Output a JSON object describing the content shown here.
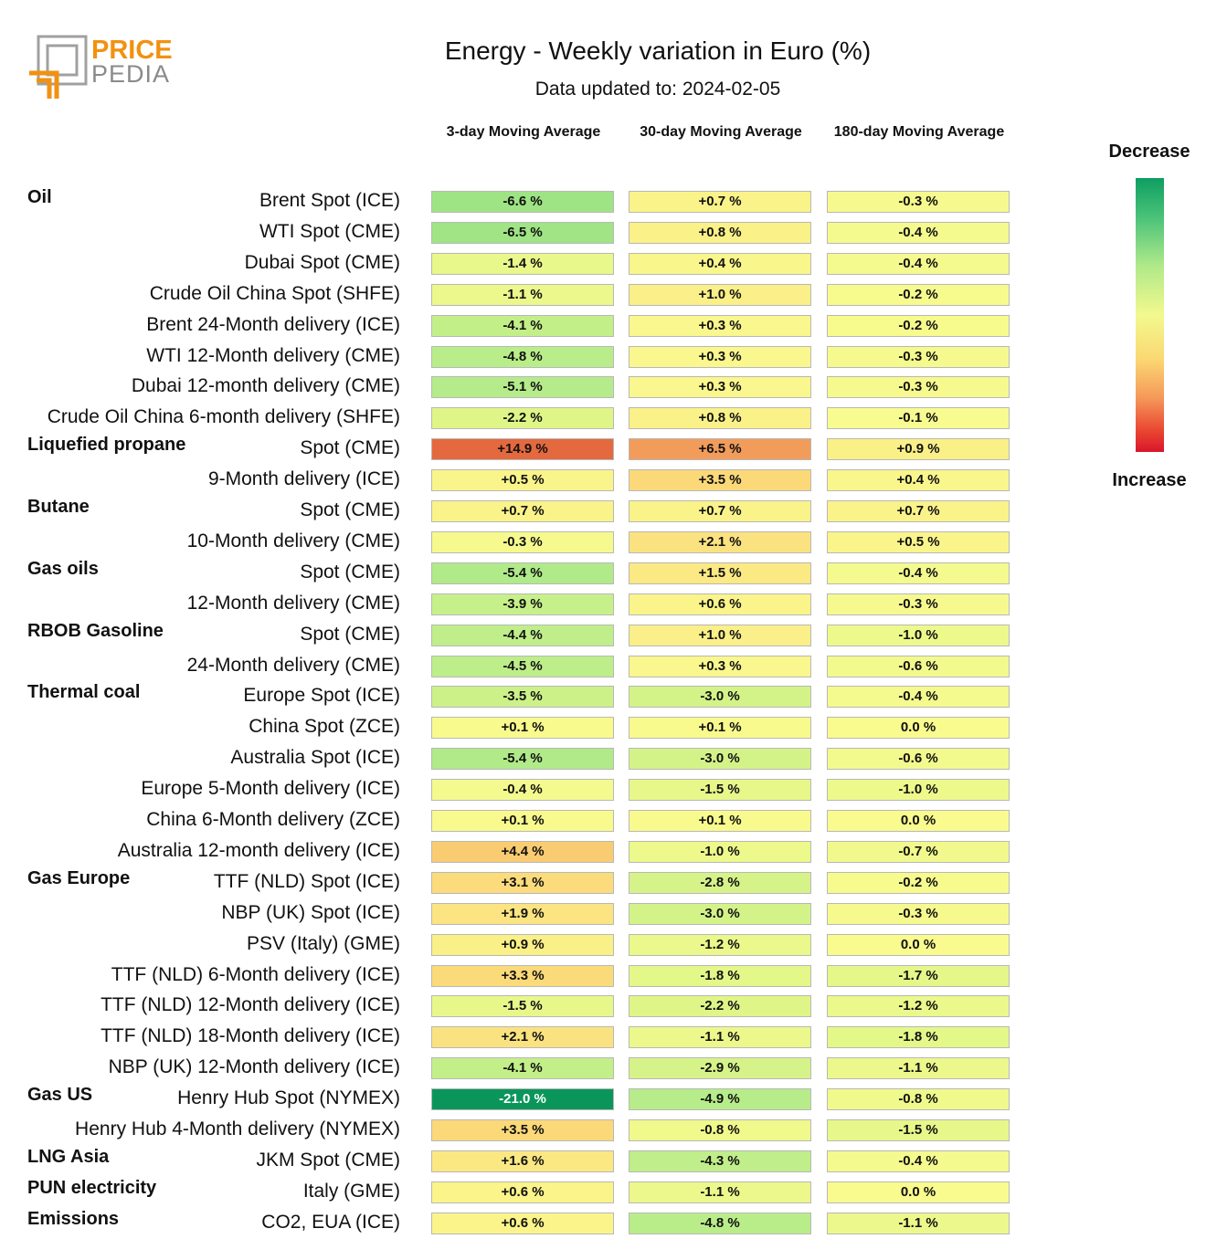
{
  "logo": {
    "line1": "PRICE",
    "line2": "PEDIA"
  },
  "title": "Energy - Weekly variation in Euro (%)",
  "subtitle": "Data updated to: 2024-02-05",
  "columns": [
    "3-day Moving Average",
    "30-day Moving Average",
    "180-day Moving Average"
  ],
  "legend": {
    "top": "Decrease",
    "bottom": "Increase"
  },
  "chart_data": {
    "type": "table",
    "title": "Energy - Weekly variation in Euro (%)",
    "columns": [
      "3-day Moving Average",
      "30-day Moving Average",
      "180-day Moving Average"
    ],
    "unit": "%",
    "rows": [
      {
        "group": "Oil",
        "name": "Brent Spot (ICE)",
        "text": [
          "-6.6 %",
          "+0.7 %",
          "-0.3 %"
        ],
        "values": [
          -6.6,
          0.7,
          -0.3
        ]
      },
      {
        "group": "",
        "name": "WTI Spot (CME)",
        "text": [
          "-6.5 %",
          "+0.8 %",
          "-0.4 %"
        ],
        "values": [
          -6.5,
          0.8,
          -0.4
        ]
      },
      {
        "group": "",
        "name": "Dubai Spot (CME)",
        "text": [
          "-1.4 %",
          "+0.4 %",
          "-0.4 %"
        ],
        "values": [
          -1.4,
          0.4,
          -0.4
        ]
      },
      {
        "group": "",
        "name": "Crude Oil China Spot (SHFE)",
        "text": [
          "-1.1 %",
          "+1.0 %",
          "-0.2 %"
        ],
        "values": [
          -1.1,
          1.0,
          -0.2
        ]
      },
      {
        "group": "",
        "name": "Brent 24-Month delivery (ICE)",
        "text": [
          "-4.1 %",
          "+0.3 %",
          "-0.2 %"
        ],
        "values": [
          -4.1,
          0.3,
          -0.2
        ]
      },
      {
        "group": "",
        "name": "WTI 12-Month delivery (CME)",
        "text": [
          "-4.8 %",
          "+0.3 %",
          "-0.3 %"
        ],
        "values": [
          -4.8,
          0.3,
          -0.3
        ]
      },
      {
        "group": "",
        "name": "Dubai 12-month delivery (CME)",
        "text": [
          "-5.1 %",
          "+0.3 %",
          "-0.3 %"
        ],
        "values": [
          -5.1,
          0.3,
          -0.3
        ]
      },
      {
        "group": "",
        "name": "Crude Oil China 6-month delivery (SHFE)",
        "text": [
          "-2.2 %",
          "+0.8 %",
          "-0.1 %"
        ],
        "values": [
          -2.2,
          0.8,
          -0.1
        ]
      },
      {
        "group": "Liquefied propane",
        "name": "Spot (CME)",
        "text": [
          "+14.9 %",
          "+6.5 %",
          "+0.9 %"
        ],
        "values": [
          14.9,
          6.5,
          0.9
        ]
      },
      {
        "group": "",
        "name": "9-Month delivery (ICE)",
        "text": [
          "+0.5 %",
          "+3.5 %",
          "+0.4 %"
        ],
        "values": [
          0.5,
          3.5,
          0.4
        ]
      },
      {
        "group": "Butane",
        "name": "Spot (CME)",
        "text": [
          "+0.7 %",
          "+0.7 %",
          "+0.7 %"
        ],
        "values": [
          0.7,
          0.7,
          0.7
        ]
      },
      {
        "group": "",
        "name": "10-Month delivery (CME)",
        "text": [
          "-0.3 %",
          "+2.1 %",
          "+0.5 %"
        ],
        "values": [
          -0.3,
          2.1,
          0.5
        ]
      },
      {
        "group": "Gas oils",
        "name": "Spot (CME)",
        "text": [
          "-5.4 %",
          "+1.5 %",
          "-0.4 %"
        ],
        "values": [
          -5.4,
          1.5,
          -0.4
        ]
      },
      {
        "group": "",
        "name": "12-Month delivery (CME)",
        "text": [
          "-3.9 %",
          "+0.6 %",
          "-0.3 %"
        ],
        "values": [
          -3.9,
          0.6,
          -0.3
        ]
      },
      {
        "group": "RBOB Gasoline",
        "name": "Spot (CME)",
        "text": [
          "-4.4 %",
          "+1.0 %",
          "-1.0 %"
        ],
        "values": [
          -4.4,
          1.0,
          -1.0
        ]
      },
      {
        "group": "",
        "name": "24-Month delivery (CME)",
        "text": [
          "-4.5 %",
          "+0.3 %",
          "-0.6 %"
        ],
        "values": [
          -4.5,
          0.3,
          -0.6
        ]
      },
      {
        "group": "Thermal coal",
        "name": "Europe Spot (ICE)",
        "text": [
          "-3.5 %",
          "-3.0 %",
          "-0.4 %"
        ],
        "values": [
          -3.5,
          -3.0,
          -0.4
        ]
      },
      {
        "group": "",
        "name": "China Spot (ZCE)",
        "text": [
          "+0.1 %",
          "+0.1 %",
          "0.0 %"
        ],
        "values": [
          0.1,
          0.1,
          0.0
        ]
      },
      {
        "group": "",
        "name": "Australia Spot (ICE)",
        "text": [
          "-5.4 %",
          "-3.0 %",
          "-0.6 %"
        ],
        "values": [
          -5.4,
          -3.0,
          -0.6
        ]
      },
      {
        "group": "",
        "name": "Europe 5-Month delivery (ICE)",
        "text": [
          "-0.4 %",
          "-1.5 %",
          "-1.0 %"
        ],
        "values": [
          -0.4,
          -1.5,
          -1.0
        ]
      },
      {
        "group": "",
        "name": "China 6-Month delivery (ZCE)",
        "text": [
          "+0.1 %",
          "+0.1 %",
          "0.0 %"
        ],
        "values": [
          0.1,
          0.1,
          0.0
        ]
      },
      {
        "group": "",
        "name": "Australia 12-month delivery (ICE)",
        "text": [
          "+4.4 %",
          "-1.0 %",
          "-0.7 %"
        ],
        "values": [
          4.4,
          -1.0,
          -0.7
        ]
      },
      {
        "group": "Gas Europe",
        "name": "TTF (NLD) Spot (ICE)",
        "text": [
          "+3.1 %",
          "-2.8 %",
          "-0.2 %"
        ],
        "values": [
          3.1,
          -2.8,
          -0.2
        ]
      },
      {
        "group": "",
        "name": "NBP (UK) Spot (ICE)",
        "text": [
          "+1.9 %",
          "-3.0 %",
          "-0.3 %"
        ],
        "values": [
          1.9,
          -3.0,
          -0.3
        ]
      },
      {
        "group": "",
        "name": "PSV (Italy) (GME)",
        "text": [
          "+0.9 %",
          "-1.2 %",
          "0.0 %"
        ],
        "values": [
          0.9,
          -1.2,
          0.0
        ]
      },
      {
        "group": "",
        "name": "TTF (NLD) 6-Month delivery (ICE)",
        "text": [
          "+3.3 %",
          "-1.8 %",
          "-1.7 %"
        ],
        "values": [
          3.3,
          -1.8,
          -1.7
        ]
      },
      {
        "group": "",
        "name": "TTF (NLD) 12-Month delivery (ICE)",
        "text": [
          "-1.5 %",
          "-2.2 %",
          "-1.2 %"
        ],
        "values": [
          -1.5,
          -2.2,
          -1.2
        ]
      },
      {
        "group": "",
        "name": "TTF (NLD) 18-Month delivery (ICE)",
        "text": [
          "+2.1 %",
          "-1.1 %",
          "-1.8 %"
        ],
        "values": [
          2.1,
          -1.1,
          -1.8
        ]
      },
      {
        "group": "",
        "name": "NBP (UK) 12-Month delivery (ICE)",
        "text": [
          "-4.1 %",
          "-2.9 %",
          "-1.1 %"
        ],
        "values": [
          -4.1,
          -2.9,
          -1.1
        ]
      },
      {
        "group": "Gas US",
        "name": "Henry Hub Spot (NYMEX)",
        "text": [
          "-21.0 %",
          "-4.9 %",
          "-0.8 %"
        ],
        "values": [
          -21.0,
          -4.9,
          -0.8
        ]
      },
      {
        "group": "",
        "name": "Henry Hub 4-Month delivery (NYMEX)",
        "text": [
          "+3.5 %",
          "-0.8 %",
          "-1.5 %"
        ],
        "values": [
          3.5,
          -0.8,
          -1.5
        ]
      },
      {
        "group": "LNG Asia",
        "name": "JKM Spot (CME)",
        "text": [
          "+1.6 %",
          "-4.3 %",
          "-0.4 %"
        ],
        "values": [
          1.6,
          -4.3,
          -0.4
        ]
      },
      {
        "group": "PUN electricity",
        "name": "Italy (GME)",
        "text": [
          "+0.6 %",
          "-1.1 %",
          "0.0 %"
        ],
        "values": [
          0.6,
          -1.1,
          0.0
        ]
      },
      {
        "group": "Emissions",
        "name": "CO2, EUA (ICE)",
        "text": [
          "+0.6 %",
          "-4.8 %",
          "-1.1 %"
        ],
        "values": [
          0.6,
          -4.8,
          -1.1
        ]
      }
    ]
  }
}
